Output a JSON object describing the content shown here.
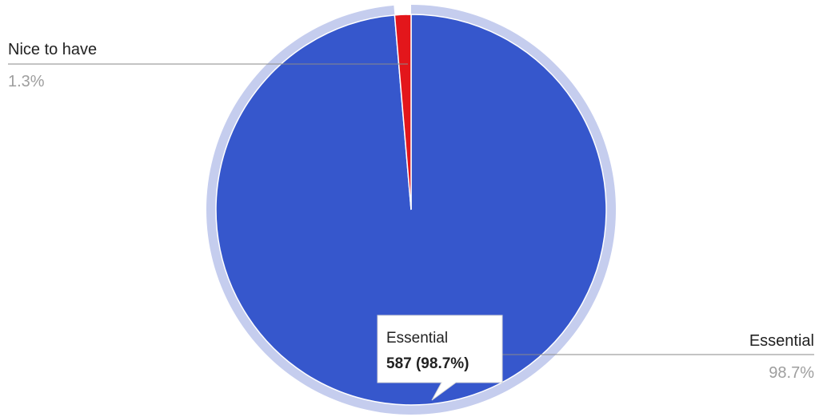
{
  "chart_data": {
    "type": "pie",
    "slices": [
      {
        "label": "Essential",
        "value": 587,
        "percent": 98.7,
        "percent_label": "98.7%",
        "color": "#3657cc"
      },
      {
        "label": "Nice to have",
        "value": 8,
        "percent": 1.3,
        "percent_label": "1.3%",
        "color": "#e3161b"
      }
    ],
    "highlighted_slice": "Essential",
    "hover_ring_color": "#c5cdee",
    "tooltip": {
      "title": "Essential",
      "value": "587 (98.7%)"
    }
  }
}
